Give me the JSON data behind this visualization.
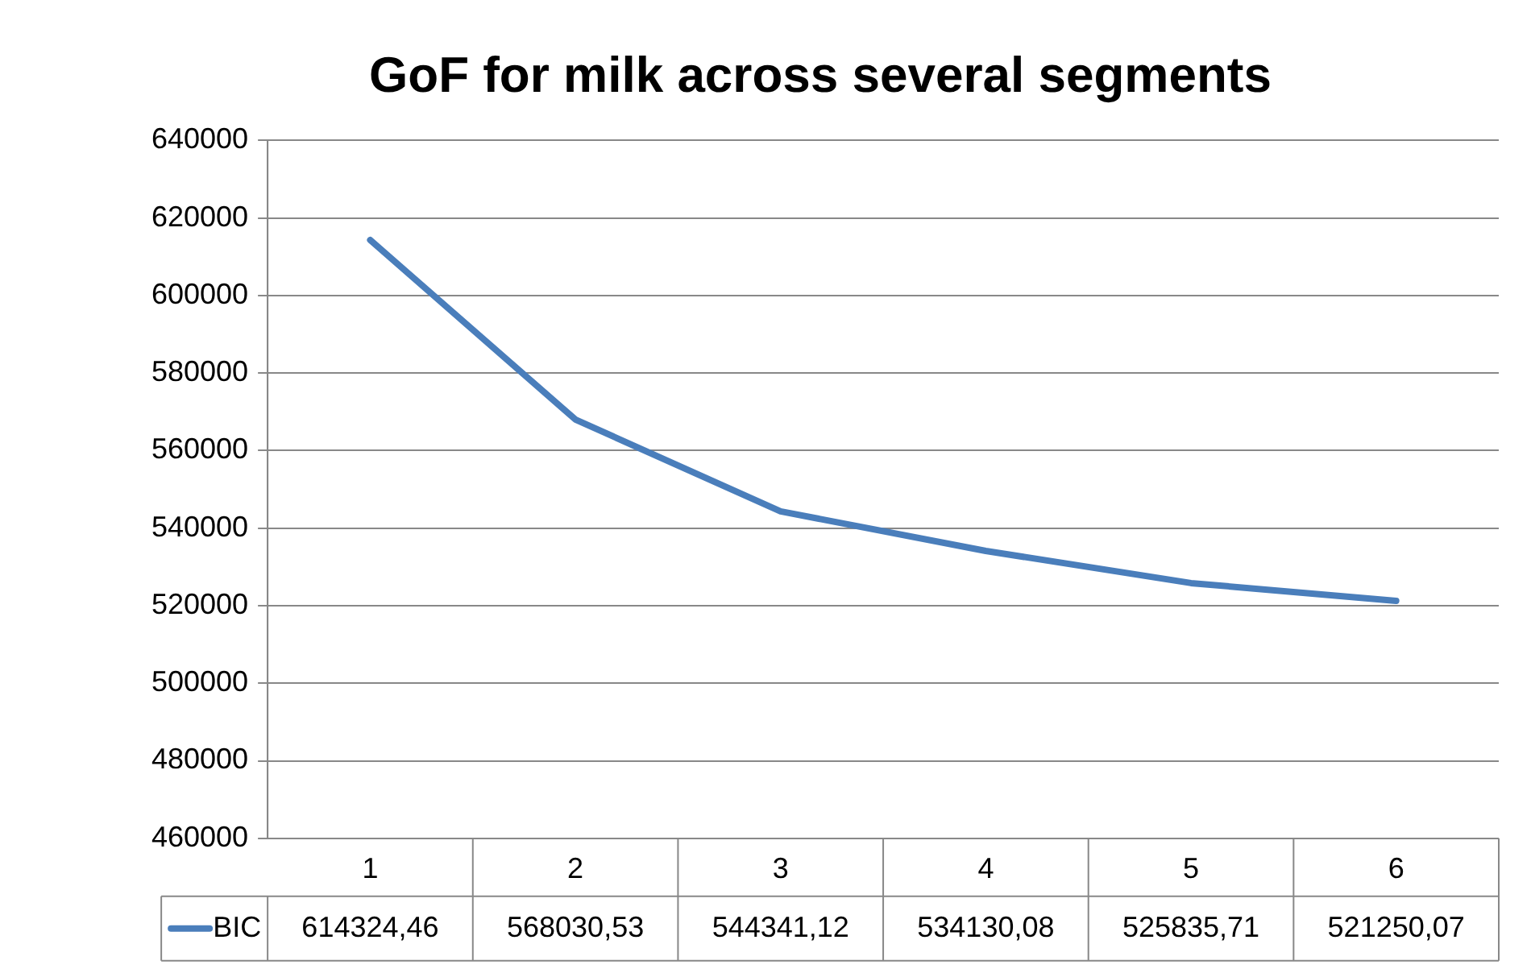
{
  "chart_data": {
    "type": "line",
    "title": "GoF for milk across several segments",
    "categories": [
      "1",
      "2",
      "3",
      "4",
      "5",
      "6"
    ],
    "series": [
      {
        "name": "BIC",
        "color": "#4a7ebb",
        "values": [
          614324.46,
          568030.53,
          544341.12,
          534130.08,
          525835.71,
          521250.07
        ],
        "value_labels": [
          "614324,46",
          "568030,53",
          "544341,12",
          "534130,08",
          "525835,71",
          "521250,07"
        ]
      }
    ],
    "ylim": [
      460000,
      640000
    ],
    "yticks": [
      460000,
      480000,
      500000,
      520000,
      540000,
      560000,
      580000,
      600000,
      620000,
      640000
    ],
    "grid": "y",
    "marker": "none",
    "line_style": "solid"
  }
}
